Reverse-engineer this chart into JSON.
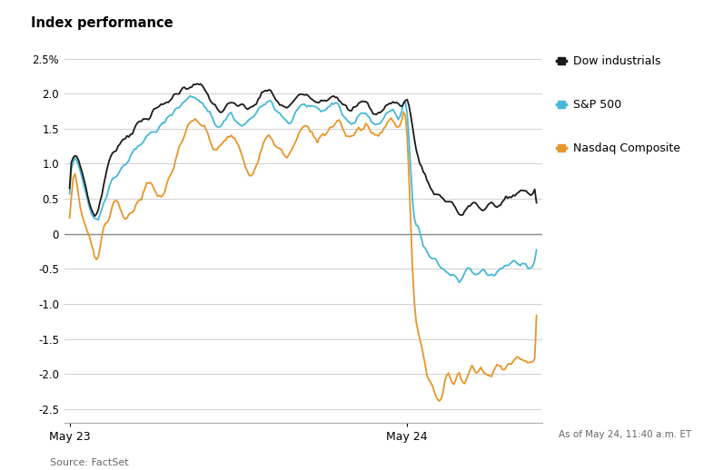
{
  "title": "Index performance",
  "source": "Source: FactSet",
  "annotation": "As of May 24, 11:40 a.m. ET",
  "xtick_labels": [
    "May 23",
    "May 24"
  ],
  "yticks": [
    -2.5,
    -2.0,
    -1.5,
    -1.0,
    -0.5,
    0,
    0.5,
    1.0,
    1.5,
    2.0
  ],
  "ytick_top_label": "2.5%",
  "ylim": [
    -2.7,
    2.8
  ],
  "colors": {
    "dow": "#1a1a1a",
    "sp500": "#45b8d8",
    "nasdaq": "#e8952a"
  },
  "legend": {
    "dow": "Dow industrials",
    "sp500": "S&P 500",
    "nasdaq": "Nasdaq Composite"
  },
  "background_color": "#ffffff",
  "grid_color": "#d0d0d0",
  "zero_line_color": "#888888",
  "dow_keypoints": [
    [
      0,
      0.88
    ],
    [
      4,
      1.12
    ],
    [
      8,
      0.78
    ],
    [
      15,
      0.28
    ],
    [
      20,
      0.82
    ],
    [
      30,
      1.35
    ],
    [
      40,
      1.6
    ],
    [
      55,
      1.9
    ],
    [
      65,
      2.1
    ],
    [
      75,
      2.05
    ],
    [
      85,
      1.75
    ],
    [
      90,
      1.85
    ],
    [
      95,
      1.82
    ],
    [
      105,
      1.9
    ],
    [
      110,
      2.05
    ],
    [
      115,
      1.92
    ],
    [
      120,
      1.8
    ],
    [
      130,
      2.0
    ],
    [
      140,
      1.9
    ],
    [
      150,
      1.95
    ],
    [
      155,
      1.75
    ],
    [
      160,
      1.82
    ],
    [
      165,
      1.88
    ],
    [
      170,
      1.72
    ],
    [
      175,
      1.78
    ],
    [
      180,
      1.88
    ],
    [
      185,
      1.85
    ],
    [
      188,
      1.92
    ],
    [
      192,
      1.35
    ],
    [
      196,
      0.95
    ],
    [
      200,
      0.72
    ],
    [
      205,
      0.55
    ],
    [
      210,
      0.48
    ],
    [
      215,
      0.38
    ],
    [
      218,
      0.25
    ],
    [
      222,
      0.38
    ],
    [
      226,
      0.45
    ],
    [
      230,
      0.32
    ],
    [
      234,
      0.42
    ],
    [
      238,
      0.38
    ],
    [
      242,
      0.5
    ],
    [
      246,
      0.52
    ],
    [
      250,
      0.62
    ],
    [
      255,
      0.58
    ],
    [
      260,
      0.65
    ]
  ],
  "sp500_keypoints": [
    [
      0,
      0.8
    ],
    [
      4,
      1.05
    ],
    [
      8,
      0.68
    ],
    [
      15,
      0.2
    ],
    [
      20,
      0.55
    ],
    [
      30,
      0.95
    ],
    [
      40,
      1.3
    ],
    [
      55,
      1.65
    ],
    [
      65,
      1.92
    ],
    [
      75,
      1.85
    ],
    [
      85,
      1.55
    ],
    [
      90,
      1.68
    ],
    [
      95,
      1.58
    ],
    [
      105,
      1.78
    ],
    [
      110,
      1.9
    ],
    [
      115,
      1.78
    ],
    [
      120,
      1.62
    ],
    [
      130,
      1.85
    ],
    [
      140,
      1.75
    ],
    [
      150,
      1.82
    ],
    [
      155,
      1.6
    ],
    [
      160,
      1.68
    ],
    [
      165,
      1.75
    ],
    [
      170,
      1.55
    ],
    [
      175,
      1.65
    ],
    [
      180,
      1.75
    ],
    [
      185,
      1.72
    ],
    [
      188,
      1.85
    ],
    [
      191,
      0.42
    ],
    [
      194,
      0.1
    ],
    [
      197,
      -0.15
    ],
    [
      200,
      -0.28
    ],
    [
      205,
      -0.42
    ],
    [
      210,
      -0.55
    ],
    [
      215,
      -0.62
    ],
    [
      218,
      -0.68
    ],
    [
      222,
      -0.48
    ],
    [
      226,
      -0.58
    ],
    [
      230,
      -0.52
    ],
    [
      234,
      -0.6
    ],
    [
      238,
      -0.55
    ],
    [
      242,
      -0.45
    ],
    [
      246,
      -0.42
    ],
    [
      250,
      -0.38
    ],
    [
      255,
      -0.45
    ],
    [
      260,
      -0.32
    ]
  ],
  "nasdaq_keypoints": [
    [
      0,
      0.12
    ],
    [
      3,
      0.85
    ],
    [
      5,
      0.52
    ],
    [
      8,
      0.15
    ],
    [
      12,
      -0.08
    ],
    [
      15,
      -0.42
    ],
    [
      18,
      0.0
    ],
    [
      22,
      0.25
    ],
    [
      25,
      0.48
    ],
    [
      30,
      0.25
    ],
    [
      35,
      0.35
    ],
    [
      40,
      0.52
    ],
    [
      45,
      0.7
    ],
    [
      50,
      0.5
    ],
    [
      55,
      0.75
    ],
    [
      60,
      1.1
    ],
    [
      65,
      1.45
    ],
    [
      70,
      1.62
    ],
    [
      75,
      1.5
    ],
    [
      80,
      1.28
    ],
    [
      85,
      1.25
    ],
    [
      90,
      1.38
    ],
    [
      95,
      1.2
    ],
    [
      100,
      0.82
    ],
    [
      105,
      1.05
    ],
    [
      110,
      1.38
    ],
    [
      115,
      1.28
    ],
    [
      120,
      1.12
    ],
    [
      125,
      1.25
    ],
    [
      130,
      1.52
    ],
    [
      135,
      1.42
    ],
    [
      140,
      1.38
    ],
    [
      145,
      1.52
    ],
    [
      150,
      1.62
    ],
    [
      155,
      1.4
    ],
    [
      160,
      1.48
    ],
    [
      165,
      1.55
    ],
    [
      170,
      1.42
    ],
    [
      175,
      1.52
    ],
    [
      180,
      1.62
    ],
    [
      185,
      1.58
    ],
    [
      188,
      1.52
    ],
    [
      190,
      0.05
    ],
    [
      192,
      -1.15
    ],
    [
      194,
      -1.35
    ],
    [
      196,
      -1.6
    ],
    [
      198,
      -1.85
    ],
    [
      200,
      -2.05
    ],
    [
      203,
      -2.22
    ],
    [
      206,
      -2.42
    ],
    [
      208,
      -2.18
    ],
    [
      210,
      -1.95
    ],
    [
      212,
      -2.08
    ],
    [
      214,
      -2.18
    ],
    [
      216,
      -1.98
    ],
    [
      218,
      -2.05
    ],
    [
      220,
      -2.15
    ],
    [
      222,
      -1.92
    ],
    [
      226,
      -2.0
    ],
    [
      230,
      -1.92
    ],
    [
      234,
      -2.05
    ],
    [
      238,
      -1.88
    ],
    [
      242,
      -1.95
    ],
    [
      246,
      -1.82
    ],
    [
      250,
      -1.75
    ],
    [
      255,
      -1.85
    ],
    [
      260,
      -1.72
    ]
  ],
  "n_may23": 188,
  "n_total": 261
}
